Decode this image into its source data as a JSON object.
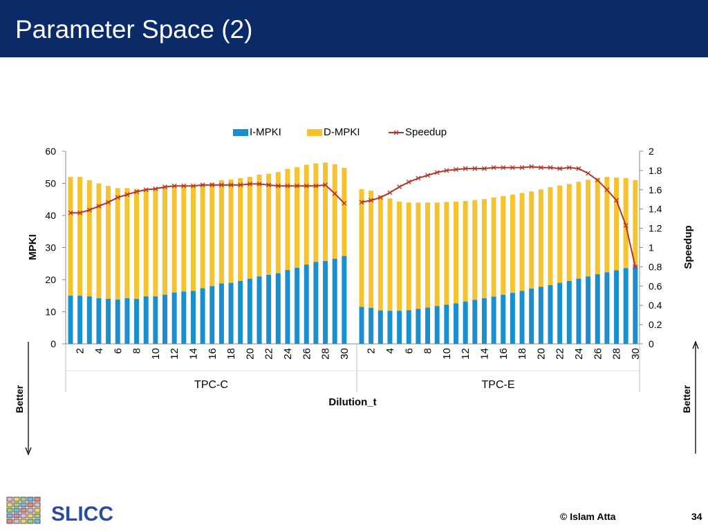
{
  "slide": {
    "title": "Parameter Space (2)",
    "footer_copyright": "© Islam Atta",
    "page_number": "34",
    "logo_text": "SLICC"
  },
  "annotations": {
    "left_better": "Better",
    "right_better": "Better"
  },
  "chart_data": {
    "type": "bar",
    "stacked": true,
    "xlabel": "Dilution_t",
    "ylabel": "MPKI",
    "y2label": "Speedup",
    "ylim": [
      0,
      60
    ],
    "y2lim": [
      0,
      2
    ],
    "yticks": [
      "0",
      "10",
      "20",
      "30",
      "40",
      "50",
      "60"
    ],
    "y2ticks": [
      "0",
      "0.2",
      "0.4",
      "0.6",
      "0.8",
      "1",
      "1.2",
      "1.4",
      "1.6",
      "1.8",
      "2"
    ],
    "legend_position": "top",
    "colors": {
      "i_mpki": "#1a8fd0",
      "d_mpki": "#f5c230",
      "speedup": "#b5332a"
    },
    "groups": [
      {
        "name": "TPC-C",
        "categories": [
          1,
          2,
          3,
          4,
          5,
          6,
          7,
          8,
          9,
          10,
          11,
          12,
          13,
          14,
          15,
          16,
          17,
          18,
          19,
          20,
          21,
          22,
          23,
          24,
          25,
          26,
          27,
          28,
          29,
          30
        ],
        "tick_labels": [
          "",
          "2",
          "",
          "4",
          "",
          "6",
          "",
          "8",
          "",
          "10",
          "",
          "12",
          "",
          "14",
          "",
          "16",
          "",
          "18",
          "",
          "20",
          "",
          "22",
          "",
          "24",
          "",
          "26",
          "",
          "28",
          "",
          "30"
        ],
        "i_mpki": [
          15,
          15,
          14.8,
          14.2,
          14,
          13.8,
          14.2,
          14,
          14.8,
          14.8,
          15.3,
          16,
          16.3,
          16.5,
          17.3,
          18,
          18.8,
          19,
          19.6,
          20.3,
          21,
          21.5,
          22,
          23,
          23.7,
          24.7,
          25.5,
          25.8,
          26.5,
          27.4
        ],
        "total_mpki": [
          52,
          52,
          51,
          50,
          49.2,
          48.5,
          48.5,
          48.2,
          48.2,
          48.5,
          48.7,
          49,
          49.2,
          49.3,
          49.8,
          50.2,
          51,
          51.2,
          51.6,
          52,
          52.7,
          53,
          53.5,
          54.5,
          55,
          55.8,
          56.2,
          56.5,
          55.9,
          54.8
        ],
        "speedup": [
          1.36,
          1.36,
          1.39,
          1.43,
          1.47,
          1.52,
          1.55,
          1.58,
          1.6,
          1.61,
          1.63,
          1.64,
          1.64,
          1.64,
          1.65,
          1.65,
          1.65,
          1.65,
          1.65,
          1.66,
          1.66,
          1.65,
          1.64,
          1.64,
          1.64,
          1.64,
          1.64,
          1.65,
          1.56,
          1.46
        ]
      },
      {
        "name": "TPC-E",
        "categories": [
          1,
          2,
          3,
          4,
          5,
          6,
          7,
          8,
          9,
          10,
          11,
          12,
          13,
          14,
          15,
          16,
          17,
          18,
          19,
          20,
          21,
          22,
          23,
          24,
          25,
          26,
          27,
          28,
          29,
          30
        ],
        "tick_labels": [
          "",
          "2",
          "",
          "4",
          "",
          "6",
          "",
          "8",
          "",
          "10",
          "",
          "12",
          "",
          "14",
          "",
          "16",
          "",
          "18",
          "",
          "20",
          "",
          "22",
          "",
          "24",
          "",
          "26",
          "",
          "28",
          "",
          "30"
        ],
        "i_mpki": [
          11.5,
          11.2,
          10.4,
          10.3,
          10.3,
          10.5,
          10.9,
          11.3,
          11.8,
          12.2,
          12.6,
          13.2,
          13.7,
          14.2,
          14.7,
          15.3,
          15.9,
          16.5,
          17.2,
          17.8,
          18.3,
          19,
          19.6,
          20.3,
          21,
          21.7,
          22.3,
          22.9,
          23.6,
          24.2
        ],
        "total_mpki": [
          48.2,
          47.7,
          46.2,
          45.3,
          44.3,
          44,
          44,
          44,
          44,
          44.2,
          44.3,
          44.5,
          44.8,
          45.1,
          45.6,
          46,
          46.5,
          47,
          47.5,
          48.1,
          48.8,
          49.3,
          49.8,
          50.5,
          51.1,
          51.6,
          52,
          51.8,
          51.6,
          51
        ],
        "speedup": [
          1.47,
          1.49,
          1.52,
          1.57,
          1.63,
          1.68,
          1.72,
          1.75,
          1.78,
          1.8,
          1.81,
          1.82,
          1.82,
          1.82,
          1.83,
          1.83,
          1.83,
          1.83,
          1.84,
          1.83,
          1.83,
          1.82,
          1.83,
          1.82,
          1.77,
          1.7,
          1.6,
          1.49,
          1.23,
          0.8
        ]
      }
    ],
    "series": [
      {
        "name": "I-MPKI",
        "kind": "bar"
      },
      {
        "name": "D-MPKI",
        "kind": "bar"
      },
      {
        "name": "Speedup",
        "kind": "line"
      }
    ]
  }
}
